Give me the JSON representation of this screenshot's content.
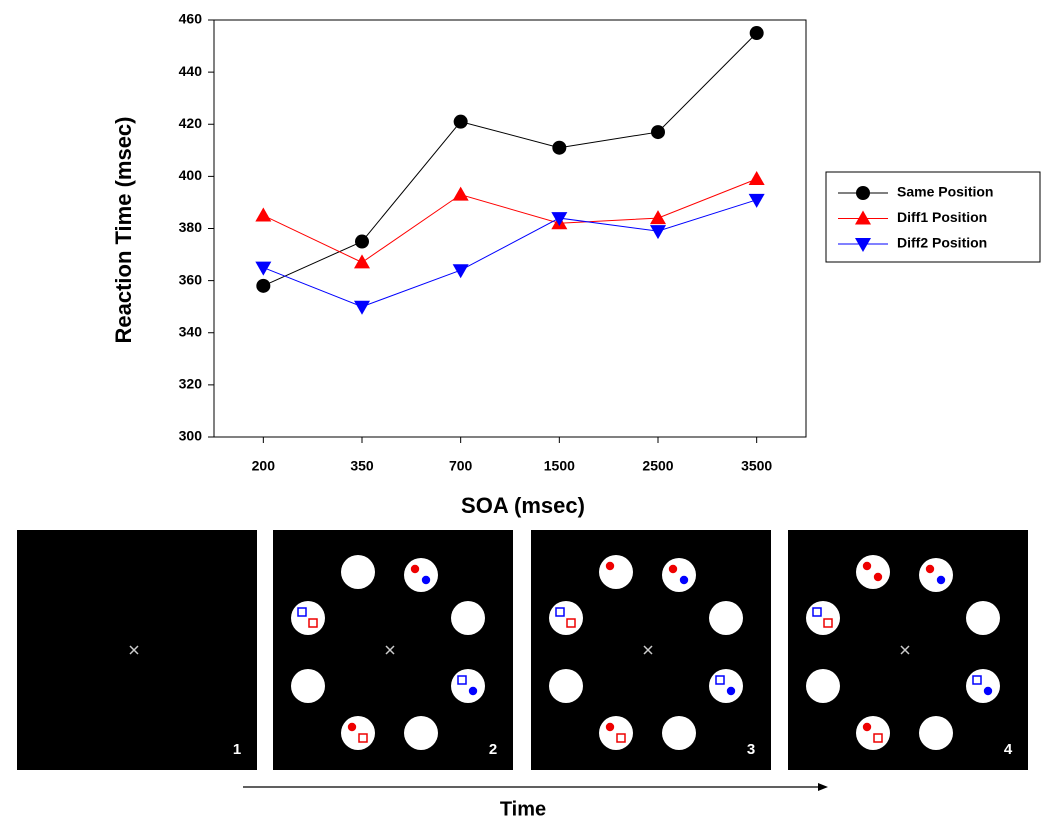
{
  "chart_data": {
    "type": "line",
    "xlabel": "SOA (msec)",
    "ylabel": "Reaction Time (msec)",
    "categories": [
      "200",
      "350",
      "700",
      "1500",
      "2500",
      "3500"
    ],
    "series": [
      {
        "name": "Same Position",
        "color": "#000000",
        "marker": "circle",
        "values": [
          358,
          375,
          421,
          411,
          417,
          455
        ]
      },
      {
        "name": "Diff1 Position",
        "color": "#ff0000",
        "marker": "triangle-up",
        "values": [
          385,
          367,
          393,
          382,
          384,
          399
        ]
      },
      {
        "name": "Diff2 Position",
        "color": "#0000ff",
        "marker": "triangle-down",
        "values": [
          365,
          350,
          364,
          384,
          379,
          391
        ]
      }
    ],
    "ylim": [
      300,
      460
    ],
    "yticks": [
      300,
      320,
      340,
      360,
      380,
      400,
      420,
      440,
      460
    ],
    "grid": false,
    "legend": "right"
  },
  "panels": {
    "labels": [
      "1",
      "2",
      "3",
      "4"
    ],
    "caption": "Time"
  }
}
